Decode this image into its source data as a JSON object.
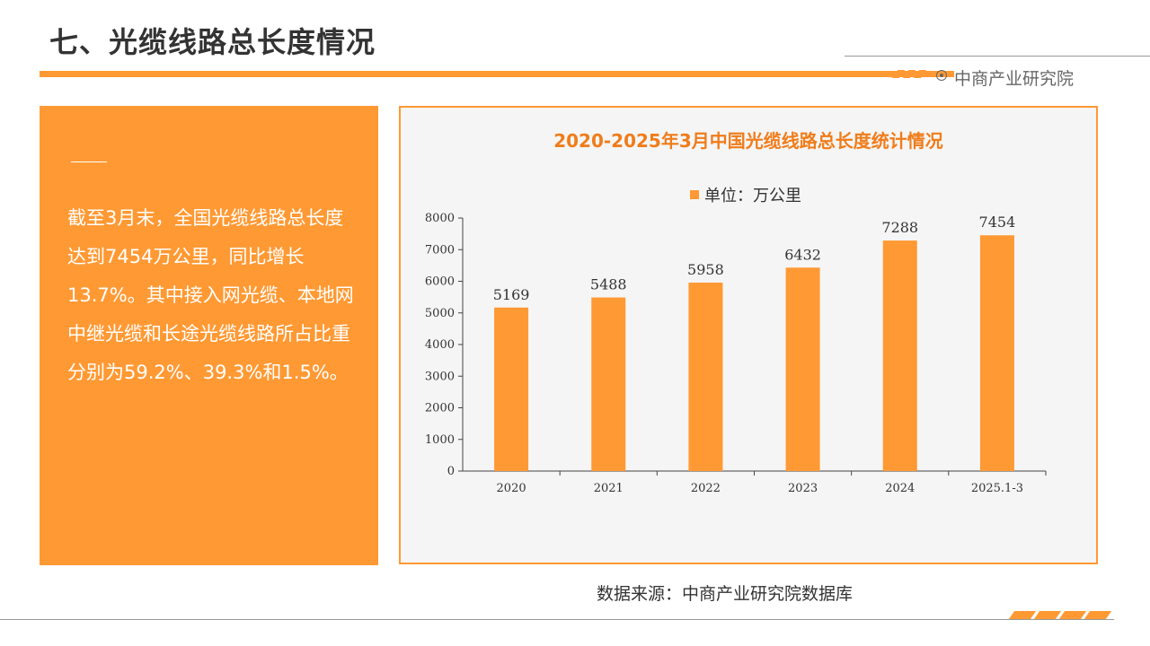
{
  "page": {
    "title": "七、光缆线路总长度情况",
    "brand": "中商产业研究院",
    "summary": "截至3月末，全国光缆线路总长度达到7454万公里，同比增长13.7%。其中接入网光缆、本地网中继光缆和长途光缆线路所占比重分别为59.2%、39.3%和1.5%。",
    "source": "数据来源：中商产业研究院数据库"
  },
  "colors": {
    "accent": "#ff9933",
    "title_text": "#333333",
    "chart_title": "#f07c1a",
    "chart_bg": "#f5f5f5"
  },
  "icons": [
    "brand-logo-icon"
  ],
  "chart_data": {
    "type": "bar",
    "title": "2020-2025年3月中国光缆线路总长度统计情况",
    "legend": "单位：万公里",
    "legend_position": "top",
    "categories": [
      "2020",
      "2021",
      "2022",
      "2023",
      "2024",
      "2025.1-3"
    ],
    "values": [
      5169,
      5488,
      5958,
      6432,
      7288,
      7454
    ],
    "ylim": [
      0,
      8000
    ],
    "yticks": [
      0,
      1000,
      2000,
      3000,
      4000,
      5000,
      6000,
      7000,
      8000
    ],
    "grid": false,
    "xlabel": "",
    "ylabel": ""
  }
}
